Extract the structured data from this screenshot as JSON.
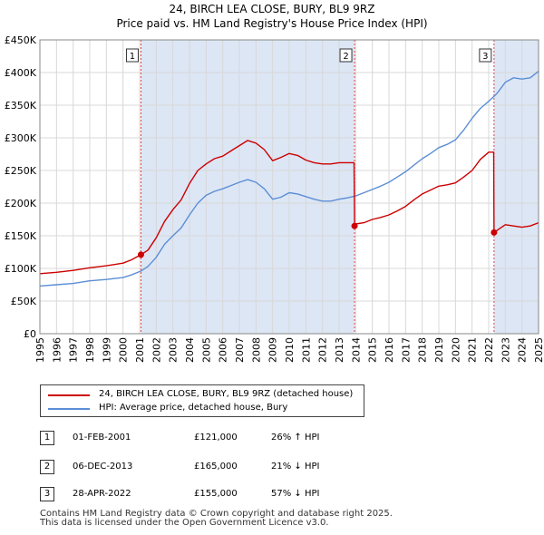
{
  "title_line1": "24, BIRCH LEA CLOSE, BURY, BL9 9RZ",
  "title_line2": "Price paid vs. HM Land Registry's House Price Index (HPI)",
  "colors": {
    "property": "#cc0000",
    "hpi": "#5b8ed6",
    "shade": "#dde6f5",
    "marker_box": "#333333",
    "vline": "#dd4444"
  },
  "legend": {
    "property_label": "24, BIRCH LEA CLOSE, BURY, BL9 9RZ (detached house)",
    "hpi_label": "HPI: Average price, detached house, Bury"
  },
  "transactions": [
    {
      "num": "1",
      "date": "01-FEB-2001",
      "price": "£121,000",
      "hpi": "26% ↑ HPI"
    },
    {
      "num": "2",
      "date": "06-DEC-2013",
      "price": "£165,000",
      "hpi": "21% ↓ HPI"
    },
    {
      "num": "3",
      "date": "28-APR-2022",
      "price": "£155,000",
      "hpi": "57% ↓ HPI"
    }
  ],
  "footer": {
    "line1": "Contains HM Land Registry data © Crown copyright and database right 2025.",
    "line2": "This data is licensed under the Open Government Licence v3.0."
  },
  "chart_data": {
    "type": "line",
    "xlim": [
      1995,
      2025
    ],
    "ylim": [
      0,
      450000
    ],
    "x_ticks": [
      "1995",
      "1996",
      "1997",
      "1998",
      "1999",
      "2000",
      "2001",
      "2002",
      "2003",
      "2004",
      "2005",
      "2006",
      "2007",
      "2008",
      "2009",
      "2010",
      "2011",
      "2012",
      "2013",
      "2014",
      "2015",
      "2016",
      "2017",
      "2018",
      "2019",
      "2020",
      "2021",
      "2022",
      "2023",
      "2024",
      "2025"
    ],
    "y_ticks": [
      {
        "value": 0,
        "label": "£0"
      },
      {
        "value": 50000,
        "label": "£50K"
      },
      {
        "value": 100000,
        "label": "£100K"
      },
      {
        "value": 150000,
        "label": "£150K"
      },
      {
        "value": 200000,
        "label": "£200K"
      },
      {
        "value": 250000,
        "label": "£250K"
      },
      {
        "value": 300000,
        "label": "£300K"
      },
      {
        "value": 350000,
        "label": "£350K"
      },
      {
        "value": 400000,
        "label": "£400K"
      },
      {
        "value": 450000,
        "label": "£450K"
      }
    ],
    "shaded_ranges": [
      [
        2001.08,
        2013.93
      ],
      [
        2022.32,
        2025
      ]
    ],
    "sales": [
      {
        "label": "1",
        "x": 2001.08,
        "y": 121000
      },
      {
        "label": "2",
        "x": 2013.93,
        "y": 165000
      },
      {
        "label": "3",
        "x": 2022.32,
        "y": 155000
      }
    ],
    "series": [
      {
        "name": "24, BIRCH LEA CLOSE, BURY, BL9 9RZ (detached house)",
        "points": [
          [
            1995,
            92000
          ],
          [
            1996,
            94000
          ],
          [
            1997,
            97000
          ],
          [
            1998,
            101000
          ],
          [
            1999,
            104000
          ],
          [
            2000,
            108000
          ],
          [
            2000.5,
            113000
          ],
          [
            2001.08,
            121000
          ],
          [
            2001.5,
            128000
          ],
          [
            2002,
            147000
          ],
          [
            2002.5,
            172000
          ],
          [
            2003,
            190000
          ],
          [
            2003.5,
            205000
          ],
          [
            2004,
            230000
          ],
          [
            2004.5,
            250000
          ],
          [
            2005,
            260000
          ],
          [
            2005.5,
            268000
          ],
          [
            2006,
            272000
          ],
          [
            2006.5,
            280000
          ],
          [
            2007,
            288000
          ],
          [
            2007.5,
            296000
          ],
          [
            2008,
            292000
          ],
          [
            2008.5,
            282000
          ],
          [
            2009,
            265000
          ],
          [
            2009.5,
            270000
          ],
          [
            2010,
            276000
          ],
          [
            2010.5,
            273000
          ],
          [
            2011,
            266000
          ],
          [
            2011.5,
            262000
          ],
          [
            2012,
            260000
          ],
          [
            2012.5,
            260000
          ],
          [
            2013,
            262000
          ],
          [
            2013.9,
            262000
          ],
          [
            2013.93,
            165000
          ],
          [
            2014,
            168000
          ],
          [
            2014.5,
            170000
          ],
          [
            2015,
            175000
          ],
          [
            2015.5,
            178000
          ],
          [
            2016,
            182000
          ],
          [
            2016.5,
            188000
          ],
          [
            2017,
            195000
          ],
          [
            2017.5,
            205000
          ],
          [
            2018,
            214000
          ],
          [
            2018.5,
            220000
          ],
          [
            2019,
            226000
          ],
          [
            2019.5,
            228000
          ],
          [
            2020,
            231000
          ],
          [
            2020.5,
            240000
          ],
          [
            2021,
            250000
          ],
          [
            2021.5,
            267000
          ],
          [
            2022,
            278000
          ],
          [
            2022.3,
            278000
          ],
          [
            2022.32,
            155000
          ],
          [
            2022.6,
            160000
          ],
          [
            2023,
            167000
          ],
          [
            2023.5,
            165000
          ],
          [
            2024,
            163000
          ],
          [
            2024.5,
            165000
          ],
          [
            2025,
            170000
          ]
        ]
      },
      {
        "name": "HPI: Average price, detached house, Bury",
        "points": [
          [
            1995,
            73000
          ],
          [
            1996,
            75000
          ],
          [
            1997,
            77000
          ],
          [
            1998,
            81000
          ],
          [
            1999,
            83000
          ],
          [
            2000,
            86000
          ],
          [
            2000.5,
            90000
          ],
          [
            2001.08,
            96000
          ],
          [
            2001.5,
            103000
          ],
          [
            2002,
            117000
          ],
          [
            2002.5,
            137000
          ],
          [
            2003,
            150000
          ],
          [
            2003.5,
            162000
          ],
          [
            2004,
            182000
          ],
          [
            2004.5,
            200000
          ],
          [
            2005,
            212000
          ],
          [
            2005.5,
            218000
          ],
          [
            2006,
            222000
          ],
          [
            2006.5,
            227000
          ],
          [
            2007,
            232000
          ],
          [
            2007.5,
            236000
          ],
          [
            2008,
            232000
          ],
          [
            2008.5,
            222000
          ],
          [
            2009,
            206000
          ],
          [
            2009.5,
            209000
          ],
          [
            2010,
            216000
          ],
          [
            2010.5,
            214000
          ],
          [
            2011,
            210000
          ],
          [
            2011.5,
            206000
          ],
          [
            2012,
            203000
          ],
          [
            2012.5,
            203000
          ],
          [
            2013,
            206000
          ],
          [
            2013.5,
            208000
          ],
          [
            2014,
            211000
          ],
          [
            2014.5,
            216000
          ],
          [
            2015,
            221000
          ],
          [
            2015.5,
            226000
          ],
          [
            2016,
            232000
          ],
          [
            2016.5,
            240000
          ],
          [
            2017,
            248000
          ],
          [
            2017.5,
            258000
          ],
          [
            2018,
            268000
          ],
          [
            2018.5,
            276000
          ],
          [
            2019,
            285000
          ],
          [
            2019.5,
            290000
          ],
          [
            2020,
            297000
          ],
          [
            2020.5,
            312000
          ],
          [
            2021,
            330000
          ],
          [
            2021.5,
            345000
          ],
          [
            2022,
            356000
          ],
          [
            2022.5,
            368000
          ],
          [
            2023,
            385000
          ],
          [
            2023.5,
            392000
          ],
          [
            2024,
            390000
          ],
          [
            2024.5,
            392000
          ],
          [
            2025,
            402000
          ]
        ]
      }
    ]
  }
}
